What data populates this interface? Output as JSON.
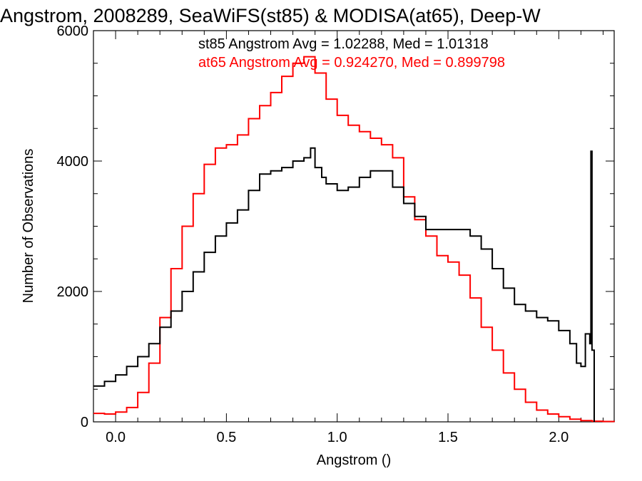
{
  "chart_data": {
    "type": "line",
    "title": "Angstrom, 2008289, SeaWiFS(st85) & MODISA(at65), Deep-W",
    "xlabel": "Angstrom ()",
    "ylabel": "Number of Observations",
    "xlim": [
      -0.1,
      2.25
    ],
    "ylim": [
      0,
      6000
    ],
    "x_ticks": [
      0.0,
      0.5,
      1.0,
      1.5,
      2.0
    ],
    "x_tick_labels": [
      "0.0",
      "0.5",
      "1.0",
      "1.5",
      "2.0"
    ],
    "y_ticks": [
      0,
      2000,
      4000,
      6000
    ],
    "y_tick_labels": [
      "0",
      "2000",
      "4000",
      "6000"
    ],
    "grid": false,
    "legend_placement": "top-center",
    "series": [
      {
        "key": "st85",
        "color": "#000000",
        "legend_text": "st85 Angstrom Avg = 1.02288, Med = 1.01318",
        "x": [
          -0.1,
          -0.05,
          0.0,
          0.05,
          0.1,
          0.15,
          0.2,
          0.25,
          0.3,
          0.35,
          0.4,
          0.45,
          0.5,
          0.55,
          0.6,
          0.65,
          0.7,
          0.75,
          0.8,
          0.85,
          0.88,
          0.9,
          0.93,
          0.95,
          1.0,
          1.05,
          1.1,
          1.15,
          1.2,
          1.25,
          1.3,
          1.35,
          1.4,
          1.45,
          1.5,
          1.55,
          1.6,
          1.65,
          1.7,
          1.75,
          1.8,
          1.85,
          1.9,
          1.95,
          2.0,
          2.05,
          2.08,
          2.1,
          2.12,
          2.14,
          2.145,
          2.15,
          2.16
        ],
        "y": [
          550,
          620,
          720,
          850,
          1000,
          1200,
          1450,
          1700,
          2000,
          2300,
          2600,
          2850,
          3050,
          3250,
          3550,
          3800,
          3850,
          3900,
          4000,
          4050,
          4200,
          3900,
          3750,
          3650,
          3550,
          3600,
          3750,
          3850,
          3850,
          3600,
          3350,
          3150,
          2950,
          2950,
          2950,
          2950,
          2850,
          2650,
          2350,
          2050,
          1800,
          1700,
          1600,
          1550,
          1400,
          1200,
          900,
          850,
          1350,
          1200,
          4150,
          1100,
          0
        ]
      },
      {
        "key": "at65",
        "color": "#ff0000",
        "legend_text": "at65 Angstrom Avg = 0.924270, Med = 0.899798",
        "x": [
          -0.1,
          -0.05,
          0.0,
          0.05,
          0.1,
          0.15,
          0.2,
          0.25,
          0.3,
          0.35,
          0.4,
          0.45,
          0.5,
          0.55,
          0.6,
          0.65,
          0.7,
          0.75,
          0.8,
          0.85,
          0.9,
          0.95,
          1.0,
          1.05,
          1.1,
          1.15,
          1.2,
          1.25,
          1.3,
          1.35,
          1.4,
          1.45,
          1.5,
          1.55,
          1.6,
          1.65,
          1.7,
          1.75,
          1.8,
          1.85,
          1.9,
          1.95,
          2.0,
          2.05,
          2.1,
          2.15,
          2.2,
          2.25
        ],
        "y": [
          130,
          120,
          150,
          220,
          450,
          900,
          1600,
          2350,
          3000,
          3500,
          3950,
          4200,
          4250,
          4400,
          4650,
          4850,
          5050,
          5300,
          5500,
          5600,
          5350,
          4950,
          4700,
          4550,
          4450,
          4350,
          4250,
          4050,
          3450,
          3100,
          2850,
          2550,
          2450,
          2250,
          1900,
          1450,
          1100,
          750,
          500,
          300,
          180,
          120,
          80,
          40,
          20,
          10,
          5,
          0
        ]
      }
    ]
  }
}
